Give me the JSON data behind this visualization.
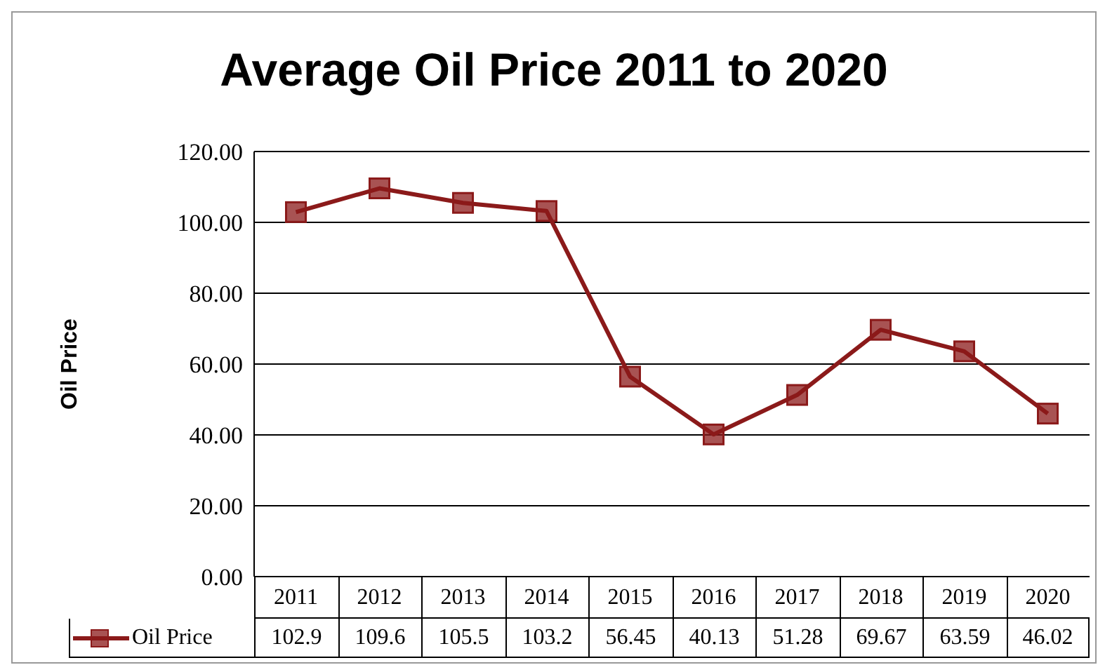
{
  "chart_data": {
    "type": "line",
    "title": "Average Oil Price 2011 to 2020",
    "ylabel": "Oil Price",
    "categories": [
      "2011",
      "2012",
      "2013",
      "2014",
      "2015",
      "2016",
      "2017",
      "2018",
      "2019",
      "2020"
    ],
    "series": [
      {
        "name": "Oil Price",
        "color": "#8b1a1a",
        "values": [
          102.9,
          109.6,
          105.5,
          103.2,
          56.45,
          40.13,
          51.28,
          69.67,
          63.59,
          46.02
        ]
      }
    ],
    "ylim": [
      0,
      120
    ],
    "yticks": [
      {
        "value": 0,
        "label": "0.00"
      },
      {
        "value": 20,
        "label": "20.00"
      },
      {
        "value": 40,
        "label": "40.00"
      },
      {
        "value": 60,
        "label": "60.00"
      },
      {
        "value": 80,
        "label": "80.00"
      },
      {
        "value": 100,
        "label": "100.00"
      },
      {
        "value": 120,
        "label": "120.00"
      }
    ],
    "grid": "y",
    "legend": "bottom",
    "marker": "square",
    "line_style": "solid",
    "data_labels": true
  }
}
